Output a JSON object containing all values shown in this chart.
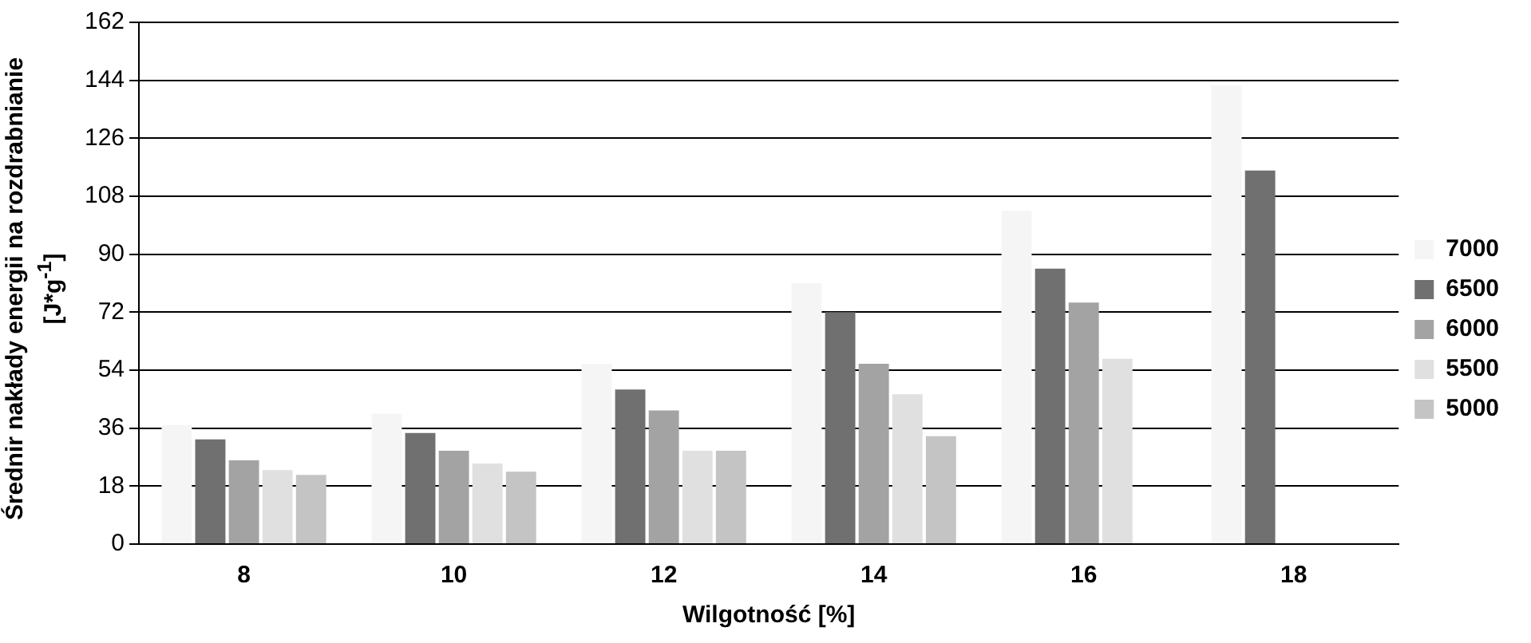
{
  "chart_data": {
    "type": "bar",
    "xlabel": "Wilgotność [%]",
    "ylabel": "Średnir nakłady energii na rozdrabnianie [J*g$^{-1}$]",
    "categories": [
      "8",
      "10",
      "12",
      "14",
      "16",
      "18"
    ],
    "series": [
      {
        "name": "7000",
        "color": "#f5f5f5",
        "values": [
          37,
          40.5,
          56,
          81,
          103.5,
          142.5
        ]
      },
      {
        "name": "6500",
        "color": "#707070",
        "values": [
          32.5,
          34.5,
          48,
          72,
          85.5,
          116
        ]
      },
      {
        "name": "6000",
        "color": "#a3a3a3",
        "values": [
          26,
          29,
          41.5,
          56,
          75,
          null
        ]
      },
      {
        "name": "5500",
        "color": "#e0e0e0",
        "values": [
          23,
          25,
          29,
          46.5,
          57.5,
          null
        ]
      },
      {
        "name": "5000",
        "color": "#c4c4c4",
        "values": [
          21.5,
          22.5,
          29,
          33.5,
          null,
          null
        ]
      }
    ],
    "ylim": [
      0,
      162
    ],
    "yticks": [
      0,
      18,
      36,
      54,
      72,
      90,
      108,
      126,
      144,
      162
    ],
    "grid": "y",
    "legend": "right"
  }
}
